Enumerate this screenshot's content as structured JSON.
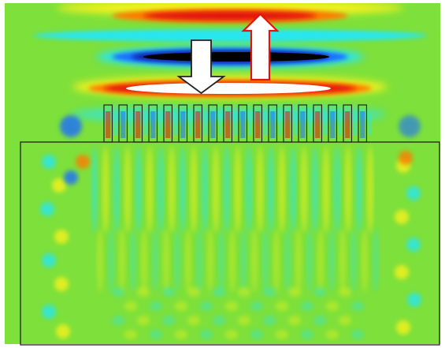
{
  "figure": {
    "background_color": "#7ee03a",
    "frame_color": "#222222",
    "colormap": [
      "#000000",
      "#0a1a9a",
      "#1f6dff",
      "#27e6f0",
      "#7ee03a",
      "#f7f21a",
      "#ff7a00",
      "#e2140a",
      "#ffffff"
    ],
    "grating_periods": 18,
    "arrows": [
      {
        "name": "incident-arrow",
        "direction": "down",
        "fill": "#ffffff",
        "stroke": "#222222"
      },
      {
        "name": "reflected-arrow",
        "direction": "up",
        "fill": "#ffffff",
        "stroke": "#e2140a"
      }
    ]
  }
}
